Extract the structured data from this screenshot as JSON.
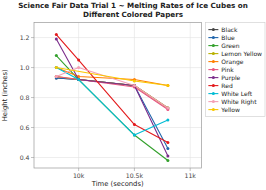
{
  "chart_data": {
    "type": "line",
    "title": "Science Fair Data Trial 1 ~ Melting Rates of Ice Cubes on Different Colored Papers",
    "x_label": "Time (seconds)",
    "y_label": "Height (inches)",
    "xlim": [
      9600,
      11100
    ],
    "xticks": [
      {
        "value": 10000,
        "label": "10k"
      },
      {
        "value": 10500,
        "label": "10.5k"
      },
      {
        "value": 11000,
        "label": "11k"
      }
    ],
    "ylim": [
      0.33,
      1.3
    ],
    "yticks": [
      0.4,
      0.6,
      0.8,
      {
        "value": 1,
        "label": "1.0"
      },
      1.2
    ],
    "grid": true,
    "legend": "right",
    "marker": "circle",
    "series": [
      {
        "name": "Black",
        "color": "#444444",
        "x": [
          9800,
          10000,
          10500,
          10800
        ],
        "values": [
          0.93,
          0.92,
          0.88,
          0.73
        ]
      },
      {
        "name": "Blue",
        "color": "#2166ac",
        "x": [
          9800,
          10000,
          10500,
          10800
        ],
        "values": [
          0.93,
          0.92,
          0.88,
          0.46
        ]
      },
      {
        "name": "Green",
        "color": "#33a02c",
        "x": [
          9800,
          10000,
          10500,
          10800
        ],
        "values": [
          1.08,
          0.92,
          0.55,
          0.38
        ]
      },
      {
        "name": "Lemon Yellow",
        "color": "#b8b000",
        "x": [
          9800,
          10000,
          10500,
          10800
        ],
        "values": [
          0.94,
          0.92,
          0.88,
          0.73
        ]
      },
      {
        "name": "Orange",
        "color": "#ff7f00",
        "x": [
          9800,
          10000,
          10500,
          10800
        ],
        "values": [
          1.0,
          0.94,
          0.92,
          0.88
        ]
      },
      {
        "name": "Pink",
        "color": "#e75480",
        "x": [
          9800,
          10000,
          10500,
          10800
        ],
        "values": [
          0.94,
          0.92,
          0.87,
          0.72
        ]
      },
      {
        "name": "Purple",
        "color": "#7b2d8b",
        "x": [
          9800,
          10000,
          10500,
          10800
        ],
        "values": [
          1.19,
          0.92,
          0.88,
          0.41
        ]
      },
      {
        "name": "Red",
        "color": "#e31a1c",
        "x": [
          9800,
          10000,
          10500,
          10800
        ],
        "values": [
          1.22,
          1.05,
          0.62,
          0.5
        ]
      },
      {
        "name": "White Left",
        "color": "#00bcd4",
        "x": [
          9800,
          10000,
          10500,
          10800
        ],
        "values": [
          1.0,
          0.92,
          0.55,
          0.65
        ]
      },
      {
        "name": "White Right",
        "color": "#f4a0b5",
        "x": [
          9800,
          10000,
          10500,
          10800
        ],
        "values": [
          0.94,
          1.0,
          0.88,
          0.73
        ]
      },
      {
        "name": "Yellow",
        "color": "#f9c700",
        "x": [
          9800,
          10500,
          10800
        ],
        "values": [
          1.0,
          0.91,
          0.88
        ]
      }
    ]
  }
}
